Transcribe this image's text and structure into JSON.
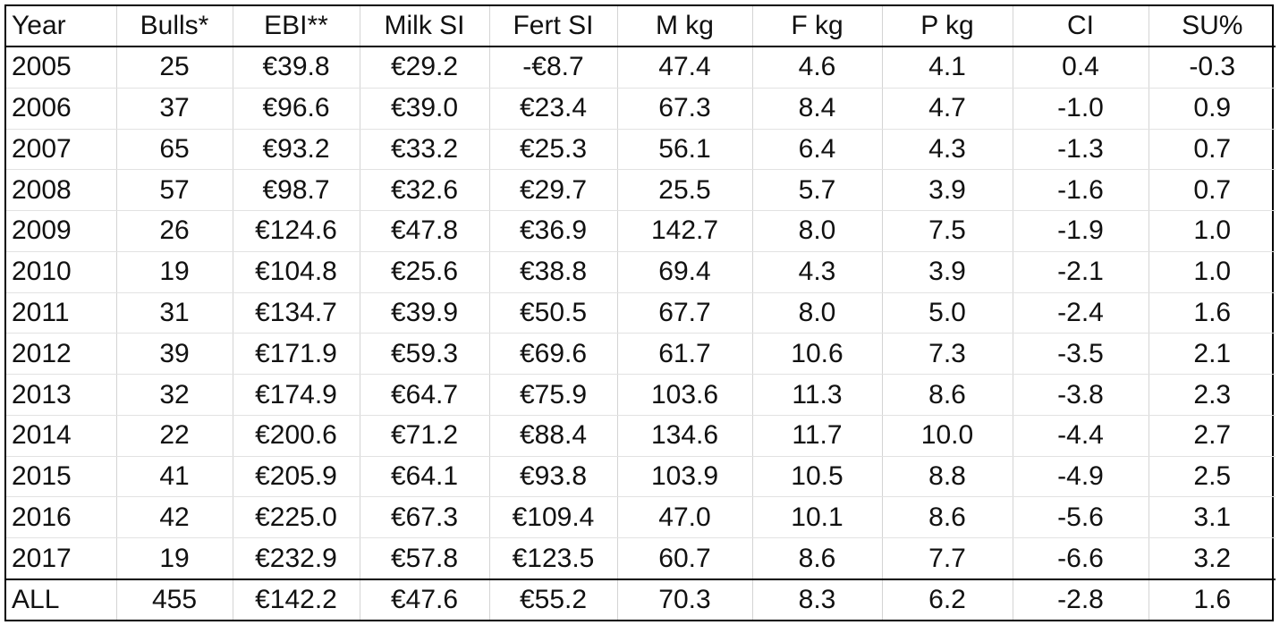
{
  "headers": [
    "Year",
    "Bulls*",
    "EBI**",
    "Milk SI",
    "Fert SI",
    "M kg",
    "F kg",
    "P kg",
    "CI",
    "SU%"
  ],
  "rows": [
    [
      "2005",
      "25",
      "€39.8",
      "€29.2",
      "-€8.7",
      "47.4",
      "4.6",
      "4.1",
      "0.4",
      "-0.3"
    ],
    [
      "2006",
      "37",
      "€96.6",
      "€39.0",
      "€23.4",
      "67.3",
      "8.4",
      "4.7",
      "-1.0",
      "0.9"
    ],
    [
      "2007",
      "65",
      "€93.2",
      "€33.2",
      "€25.3",
      "56.1",
      "6.4",
      "4.3",
      "-1.3",
      "0.7"
    ],
    [
      "2008",
      "57",
      "€98.7",
      "€32.6",
      "€29.7",
      "25.5",
      "5.7",
      "3.9",
      "-1.6",
      "0.7"
    ],
    [
      "2009",
      "26",
      "€124.6",
      "€47.8",
      "€36.9",
      "142.7",
      "8.0",
      "7.5",
      "-1.9",
      "1.0"
    ],
    [
      "2010",
      "19",
      "€104.8",
      "€25.6",
      "€38.8",
      "69.4",
      "4.3",
      "3.9",
      "-2.1",
      "1.0"
    ],
    [
      "2011",
      "31",
      "€134.7",
      "€39.9",
      "€50.5",
      "67.7",
      "8.0",
      "5.0",
      "-2.4",
      "1.6"
    ],
    [
      "2012",
      "39",
      "€171.9",
      "€59.3",
      "€69.6",
      "61.7",
      "10.6",
      "7.3",
      "-3.5",
      "2.1"
    ],
    [
      "2013",
      "32",
      "€174.9",
      "€64.7",
      "€75.9",
      "103.6",
      "11.3",
      "8.6",
      "-3.8",
      "2.3"
    ],
    [
      "2014",
      "22",
      "€200.6",
      "€71.2",
      "€88.4",
      "134.6",
      "11.7",
      "10.0",
      "-4.4",
      "2.7"
    ],
    [
      "2015",
      "41",
      "€205.9",
      "€64.1",
      "€93.8",
      "103.9",
      "10.5",
      "8.8",
      "-4.9",
      "2.5"
    ],
    [
      "2016",
      "42",
      "€225.0",
      "€67.3",
      "€109.4",
      "47.0",
      "10.1",
      "8.6",
      "-5.6",
      "3.1"
    ],
    [
      "2017",
      "19",
      "€232.9",
      "€57.8",
      "€123.5",
      "60.7",
      "8.6",
      "7.7",
      "-6.6",
      "3.2"
    ]
  ],
  "total": [
    "ALL",
    "455",
    "€142.2",
    "€47.6",
    "€55.2",
    "70.3",
    "8.3",
    "6.2",
    "-2.8",
    "1.6"
  ]
}
